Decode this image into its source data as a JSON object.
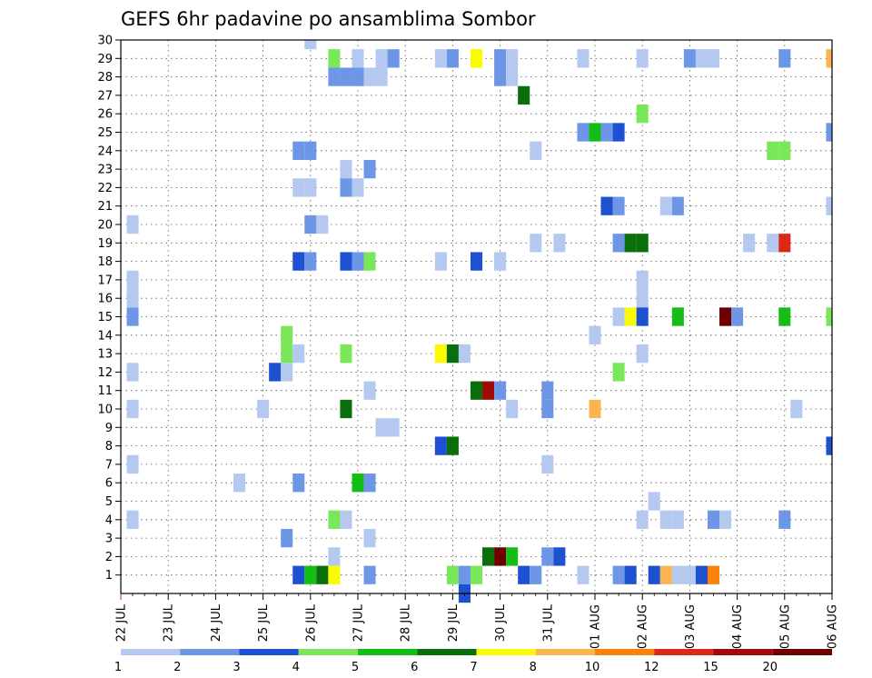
{
  "chart_data": {
    "type": "heatmap",
    "title": "GEFS 6hr padavine po ansamblima Sombor",
    "xlabel": "",
    "ylabel": "",
    "x_tick_labels": [
      "22 JUL",
      "23 JUL",
      "24 JUL",
      "25 JUL",
      "26 JUL",
      "27 JUL",
      "28 JUL",
      "29 JUL",
      "30 JUL",
      "31 JUL",
      "01 AUG",
      "02 AUG",
      "03 AUG",
      "04 AUG",
      "05 AUG",
      "06 AUG"
    ],
    "y_tick_labels": [
      "1",
      "2",
      "3",
      "4",
      "5",
      "6",
      "7",
      "8",
      "9",
      "10",
      "11",
      "12",
      "13",
      "14",
      "15",
      "16",
      "17",
      "18",
      "19",
      "20",
      "21",
      "22",
      "23",
      "24",
      "25",
      "26",
      "27",
      "28",
      "29",
      "30"
    ],
    "x_axis_units": "days from 22 JUL 00Z",
    "xlim": [
      0,
      15
    ],
    "ylim": [
      0,
      30
    ],
    "grid": true,
    "legend": {
      "placement": "bottom",
      "colors": [
        "#b4c8f0",
        "#6e96e6",
        "#1e50d2",
        "#7ae65a",
        "#14be14",
        "#0a6e0a",
        "#fafa00",
        "#fab450",
        "#fa820a",
        "#dc2814",
        "#a00a0a",
        "#6e0000"
      ],
      "labels": [
        "1",
        "2",
        "3",
        "4",
        "5",
        "6",
        "7",
        "8",
        "10",
        "12",
        "15",
        "20"
      ]
    },
    "cells": [
      {
        "x": 4.0,
        "y": 30,
        "level": 1
      },
      {
        "x": 4.5,
        "y": 29,
        "level": 4
      },
      {
        "x": 5.0,
        "y": 29,
        "level": 1
      },
      {
        "x": 5.5,
        "y": 29,
        "level": 1
      },
      {
        "x": 5.75,
        "y": 29,
        "level": 2
      },
      {
        "x": 6.75,
        "y": 29,
        "level": 1
      },
      {
        "x": 7.0,
        "y": 29,
        "level": 2
      },
      {
        "x": 7.5,
        "y": 29,
        "level": 7
      },
      {
        "x": 8.0,
        "y": 29,
        "level": 2
      },
      {
        "x": 8.25,
        "y": 29,
        "level": 1
      },
      {
        "x": 9.75,
        "y": 29,
        "level": 1
      },
      {
        "x": 11.0,
        "y": 29,
        "level": 1
      },
      {
        "x": 12.0,
        "y": 29,
        "level": 2
      },
      {
        "x": 12.25,
        "y": 29,
        "level": 1
      },
      {
        "x": 12.5,
        "y": 29,
        "level": 1
      },
      {
        "x": 14.0,
        "y": 29,
        "level": 2
      },
      {
        "x": 15.0,
        "y": 29,
        "level": 8
      },
      {
        "x": 4.5,
        "y": 28,
        "level": 2
      },
      {
        "x": 4.75,
        "y": 28,
        "level": 2
      },
      {
        "x": 5.0,
        "y": 28,
        "level": 2
      },
      {
        "x": 5.25,
        "y": 28,
        "level": 1
      },
      {
        "x": 5.5,
        "y": 28,
        "level": 1
      },
      {
        "x": 8.0,
        "y": 28,
        "level": 2
      },
      {
        "x": 8.25,
        "y": 28,
        "level": 1
      },
      {
        "x": 8.5,
        "y": 27,
        "level": 6
      },
      {
        "x": 11.0,
        "y": 26,
        "level": 4
      },
      {
        "x": 9.75,
        "y": 25,
        "level": 2
      },
      {
        "x": 10.0,
        "y": 25,
        "level": 5
      },
      {
        "x": 10.25,
        "y": 25,
        "level": 2
      },
      {
        "x": 10.5,
        "y": 25,
        "level": 3
      },
      {
        "x": 15.0,
        "y": 25,
        "level": 2
      },
      {
        "x": 3.75,
        "y": 24,
        "level": 2
      },
      {
        "x": 4.0,
        "y": 24,
        "level": 2
      },
      {
        "x": 8.75,
        "y": 24,
        "level": 1
      },
      {
        "x": 13.75,
        "y": 24,
        "level": 4
      },
      {
        "x": 14.0,
        "y": 24,
        "level": 4
      },
      {
        "x": 4.75,
        "y": 23,
        "level": 1
      },
      {
        "x": 5.25,
        "y": 23,
        "level": 2
      },
      {
        "x": 3.75,
        "y": 22,
        "level": 1
      },
      {
        "x": 4.0,
        "y": 22,
        "level": 1
      },
      {
        "x": 4.75,
        "y": 22,
        "level": 2
      },
      {
        "x": 5.0,
        "y": 22,
        "level": 1
      },
      {
        "x": 10.25,
        "y": 21,
        "level": 3
      },
      {
        "x": 10.5,
        "y": 21,
        "level": 2
      },
      {
        "x": 11.5,
        "y": 21,
        "level": 1
      },
      {
        "x": 11.75,
        "y": 21,
        "level": 2
      },
      {
        "x": 15.0,
        "y": 21,
        "level": 1
      },
      {
        "x": 0.25,
        "y": 20,
        "level": 1
      },
      {
        "x": 4.0,
        "y": 20,
        "level": 2
      },
      {
        "x": 4.25,
        "y": 20,
        "level": 1
      },
      {
        "x": 8.75,
        "y": 19,
        "level": 1
      },
      {
        "x": 9.25,
        "y": 19,
        "level": 1
      },
      {
        "x": 10.5,
        "y": 19,
        "level": 2
      },
      {
        "x": 10.75,
        "y": 19,
        "level": 6
      },
      {
        "x": 11.0,
        "y": 19,
        "level": 6
      },
      {
        "x": 13.25,
        "y": 19,
        "level": 1
      },
      {
        "x": 13.75,
        "y": 19,
        "level": 1
      },
      {
        "x": 14.0,
        "y": 19,
        "level": 10
      },
      {
        "x": 3.75,
        "y": 18,
        "level": 3
      },
      {
        "x": 4.0,
        "y": 18,
        "level": 2
      },
      {
        "x": 4.75,
        "y": 18,
        "level": 3
      },
      {
        "x": 5.0,
        "y": 18,
        "level": 2
      },
      {
        "x": 5.25,
        "y": 18,
        "level": 4
      },
      {
        "x": 6.75,
        "y": 18,
        "level": 1
      },
      {
        "x": 7.5,
        "y": 18,
        "level": 3
      },
      {
        "x": 8.0,
        "y": 18,
        "level": 1
      },
      {
        "x": 0.25,
        "y": 17,
        "level": 1
      },
      {
        "x": 11.0,
        "y": 17,
        "level": 1
      },
      {
        "x": 0.25,
        "y": 16,
        "level": 1
      },
      {
        "x": 11.0,
        "y": 16,
        "level": 1
      },
      {
        "x": 0.25,
        "y": 15,
        "level": 2
      },
      {
        "x": 10.5,
        "y": 15,
        "level": 1
      },
      {
        "x": 10.75,
        "y": 15,
        "level": 7
      },
      {
        "x": 11.0,
        "y": 15,
        "level": 3
      },
      {
        "x": 11.75,
        "y": 15,
        "level": 5
      },
      {
        "x": 12.75,
        "y": 15,
        "level": 12
      },
      {
        "x": 13.0,
        "y": 15,
        "level": 2
      },
      {
        "x": 14.0,
        "y": 15,
        "level": 5
      },
      {
        "x": 15.0,
        "y": 15,
        "level": 4
      },
      {
        "x": 10.0,
        "y": 14,
        "level": 1
      },
      {
        "x": 3.5,
        "y": 14,
        "level": 4
      },
      {
        "x": 3.5,
        "y": 13,
        "level": 4
      },
      {
        "x": 3.75,
        "y": 13,
        "level": 1
      },
      {
        "x": 4.75,
        "y": 13,
        "level": 4
      },
      {
        "x": 6.75,
        "y": 13,
        "level": 7
      },
      {
        "x": 7.0,
        "y": 13,
        "level": 6
      },
      {
        "x": 7.25,
        "y": 13,
        "level": 1
      },
      {
        "x": 11.0,
        "y": 13,
        "level": 1
      },
      {
        "x": 0.25,
        "y": 12,
        "level": 1
      },
      {
        "x": 3.25,
        "y": 12,
        "level": 3
      },
      {
        "x": 3.5,
        "y": 12,
        "level": 1
      },
      {
        "x": 10.5,
        "y": 12,
        "level": 4
      },
      {
        "x": 5.25,
        "y": 11,
        "level": 1
      },
      {
        "x": 7.5,
        "y": 11,
        "level": 6
      },
      {
        "x": 7.75,
        "y": 11,
        "level": 11
      },
      {
        "x": 8.0,
        "y": 11,
        "level": 2
      },
      {
        "x": 9.0,
        "y": 11,
        "level": 2
      },
      {
        "x": 0.25,
        "y": 10,
        "level": 1
      },
      {
        "x": 3.0,
        "y": 10,
        "level": 1
      },
      {
        "x": 4.75,
        "y": 10,
        "level": 6
      },
      {
        "x": 8.25,
        "y": 10,
        "level": 1
      },
      {
        "x": 9.0,
        "y": 10,
        "level": 2
      },
      {
        "x": 10.0,
        "y": 10,
        "level": 8
      },
      {
        "x": 14.25,
        "y": 10,
        "level": 1
      },
      {
        "x": 5.5,
        "y": 9,
        "level": 1
      },
      {
        "x": 5.75,
        "y": 9,
        "level": 1
      },
      {
        "x": 6.75,
        "y": 8,
        "level": 3
      },
      {
        "x": 7.0,
        "y": 8,
        "level": 6
      },
      {
        "x": 15.0,
        "y": 8,
        "level": 3
      },
      {
        "x": 0.25,
        "y": 7,
        "level": 1
      },
      {
        "x": 9.0,
        "y": 7,
        "level": 1
      },
      {
        "x": 2.5,
        "y": 6,
        "level": 1
      },
      {
        "x": 3.75,
        "y": 6,
        "level": 2
      },
      {
        "x": 5.0,
        "y": 6,
        "level": 5
      },
      {
        "x": 5.25,
        "y": 6,
        "level": 2
      },
      {
        "x": 11.25,
        "y": 5,
        "level": 1
      },
      {
        "x": 0.25,
        "y": 4,
        "level": 1
      },
      {
        "x": 4.5,
        "y": 4,
        "level": 4
      },
      {
        "x": 4.75,
        "y": 4,
        "level": 1
      },
      {
        "x": 11.0,
        "y": 4,
        "level": 1
      },
      {
        "x": 11.5,
        "y": 4,
        "level": 1
      },
      {
        "x": 11.75,
        "y": 4,
        "level": 1
      },
      {
        "x": 12.5,
        "y": 4,
        "level": 2
      },
      {
        "x": 12.75,
        "y": 4,
        "level": 1
      },
      {
        "x": 14.0,
        "y": 4,
        "level": 2
      },
      {
        "x": 3.5,
        "y": 3,
        "level": 2
      },
      {
        "x": 5.25,
        "y": 3,
        "level": 1
      },
      {
        "x": 4.5,
        "y": 2,
        "level": 1
      },
      {
        "x": 7.75,
        "y": 2,
        "level": 6
      },
      {
        "x": 8.0,
        "y": 2,
        "level": 12
      },
      {
        "x": 8.25,
        "y": 2,
        "level": 5
      },
      {
        "x": 9.0,
        "y": 2,
        "level": 2
      },
      {
        "x": 9.25,
        "y": 2,
        "level": 3
      },
      {
        "x": 3.75,
        "y": 1,
        "level": 3
      },
      {
        "x": 4.0,
        "y": 1,
        "level": 5
      },
      {
        "x": 4.25,
        "y": 1,
        "level": 6
      },
      {
        "x": 4.5,
        "y": 1,
        "level": 7
      },
      {
        "x": 5.25,
        "y": 1,
        "level": 2
      },
      {
        "x": 7.0,
        "y": 1,
        "level": 4
      },
      {
        "x": 7.25,
        "y": 1,
        "level": 2
      },
      {
        "x": 7.5,
        "y": 1,
        "level": 4
      },
      {
        "x": 8.5,
        "y": 1,
        "level": 3
      },
      {
        "x": 8.75,
        "y": 1,
        "level": 2
      },
      {
        "x": 9.75,
        "y": 1,
        "level": 1
      },
      {
        "x": 10.5,
        "y": 1,
        "level": 2
      },
      {
        "x": 10.75,
        "y": 1,
        "level": 3
      },
      {
        "x": 11.25,
        "y": 1,
        "level": 3
      },
      {
        "x": 11.5,
        "y": 1,
        "level": 8
      },
      {
        "x": 11.75,
        "y": 1,
        "level": 1
      },
      {
        "x": 12.0,
        "y": 1,
        "level": 1
      },
      {
        "x": 12.25,
        "y": 1,
        "level": 3
      },
      {
        "x": 12.5,
        "y": 1,
        "level": 9
      },
      {
        "x": 7.25,
        "y": 0,
        "level": 3
      }
    ]
  }
}
